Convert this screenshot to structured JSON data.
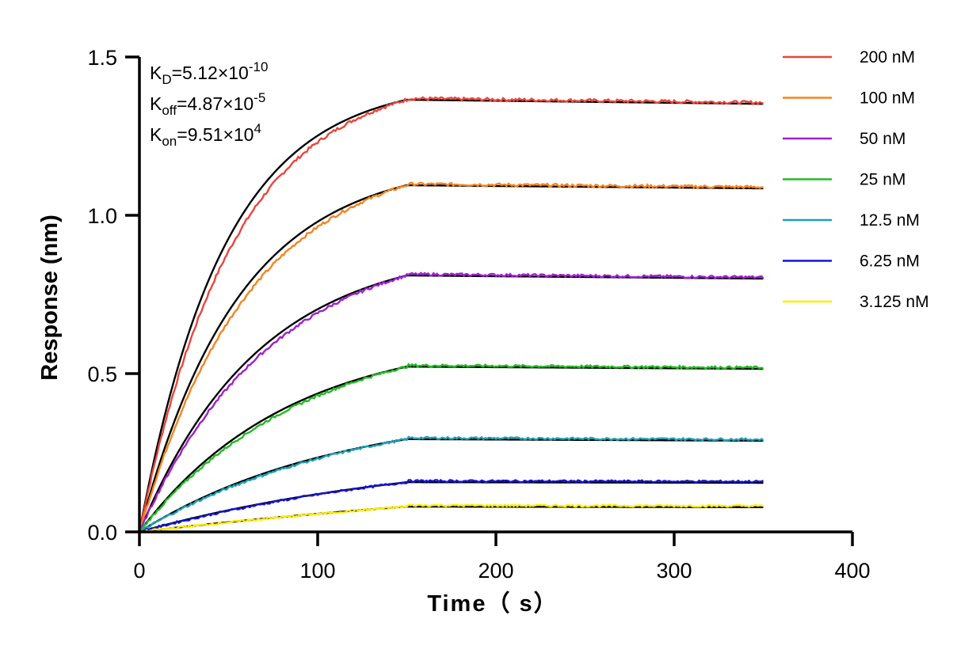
{
  "chart_data": {
    "type": "line",
    "title": "",
    "xlabel": "Time（ s）",
    "ylabel": "Response (nm)",
    "xlim": [
      0,
      400
    ],
    "ylim": [
      0,
      1.5
    ],
    "xticks": [
      "0",
      "100",
      "200",
      "300",
      "400"
    ],
    "yticks": [
      "0.0",
      "0.5",
      "1.0",
      "1.5"
    ],
    "grid": false,
    "legend_position": "right",
    "annotations": [
      {
        "name": "K",
        "sub": "D",
        "value": "=5.12×10",
        "sup": "-10"
      },
      {
        "name": "K",
        "sub": "off",
        "value": "=4.87×10",
        "sup": "-5"
      },
      {
        "name": "K",
        "sub": "on",
        "value": "=9.51×10",
        "sup": "4"
      }
    ],
    "association_end": 150,
    "experiment_end": 350,
    "fit_color": "#000000",
    "series": [
      {
        "name": "200 nM",
        "color": "#e8463c",
        "plateau": 1.365,
        "end": 1.352
      },
      {
        "name": "100 nM",
        "color": "#f5841f",
        "plateau": 1.095,
        "end": 1.085
      },
      {
        "name": "50 nM",
        "color": "#a020d0",
        "plateau": 0.81,
        "end": 0.8
      },
      {
        "name": "25 nM",
        "color": "#22bb22",
        "plateau": 0.522,
        "end": 0.515
      },
      {
        "name": "12.5 nM",
        "color": "#1e9fb5",
        "plateau": 0.293,
        "end": 0.288
      },
      {
        "name": "6.25 nM",
        "color": "#1515d0",
        "plateau": 0.157,
        "end": 0.155
      },
      {
        "name": "3.125 nM",
        "color": "#ffee00",
        "plateau": 0.08,
        "end": 0.078
      }
    ]
  }
}
